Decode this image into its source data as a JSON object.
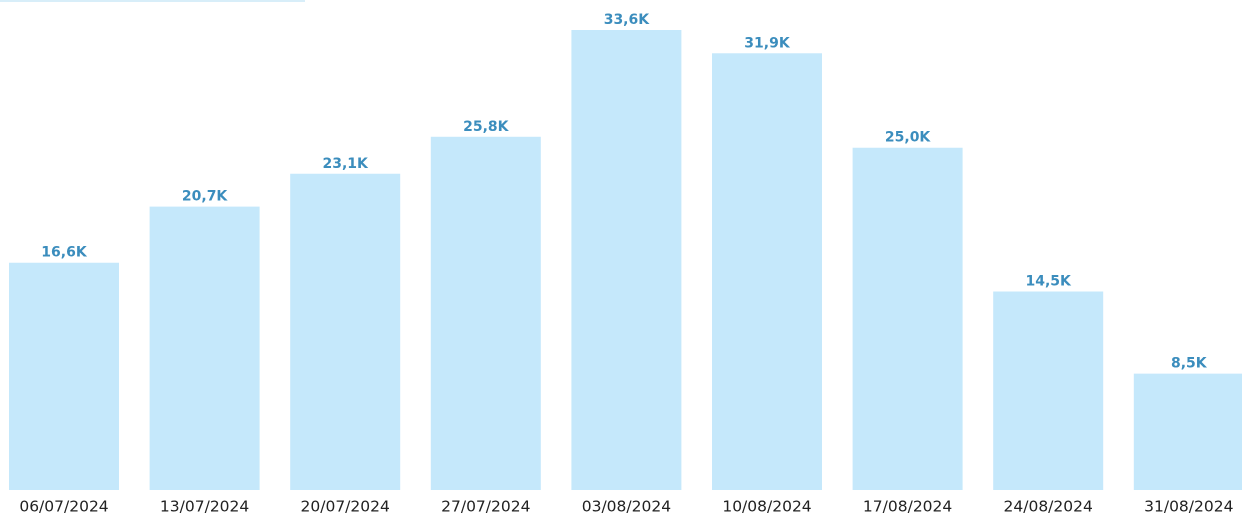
{
  "chart_data": {
    "type": "bar",
    "categories": [
      "06/07/2024",
      "13/07/2024",
      "20/07/2024",
      "27/07/2024",
      "03/08/2024",
      "10/08/2024",
      "17/08/2024",
      "24/08/2024",
      "31/08/2024"
    ],
    "values": [
      16600,
      20700,
      23100,
      25800,
      33600,
      31900,
      25000,
      14500,
      8500
    ],
    "value_labels": [
      "16,6K",
      "20,7K",
      "23,1K",
      "25,8K",
      "33,6K",
      "31,9K",
      "25,0K",
      "14,5K",
      "8,5K"
    ],
    "color": "#c5e8fb",
    "label_color": "#3b8dbd"
  }
}
